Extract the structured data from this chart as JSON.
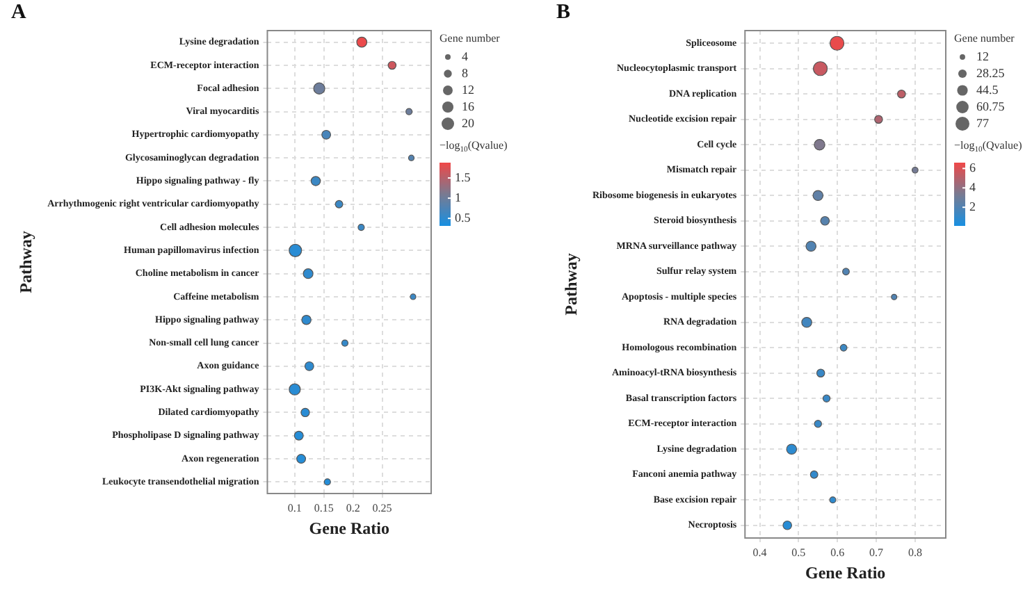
{
  "chart_data": [
    {
      "type": "bubble",
      "title": "A",
      "xlabel": "Gene Ratio",
      "ylabel": "Pathway",
      "orientation": "horizontal",
      "grid": true,
      "categories": [
        "Lysine degradation",
        "ECM-receptor interaction",
        "Focal adhesion",
        "Viral myocarditis",
        "Hypertrophic cardiomyopathy",
        "Glycosaminoglycan degradation",
        "Hippo signaling pathway - fly",
        "Arrhythmogenic right ventricular cardiomyopathy",
        "Cell adhesion molecules",
        "Human papillomavirus infection",
        "Choline metabolism in cancer",
        "Caffeine metabolism",
        "Hippo signaling pathway",
        "Non-small cell lung cancer",
        "Axon guidance",
        "PI3K-Akt signaling pathway",
        "Dilated cardiomyopathy",
        "Phospholipase D signaling pathway",
        "Axon regeneration",
        "Leukocyte transendothelial migration"
      ],
      "values": [
        0.215,
        0.267,
        0.142,
        0.296,
        0.154,
        0.3,
        0.136,
        0.176,
        0.214,
        0.101,
        0.123,
        0.303,
        0.12,
        0.186,
        0.125,
        0.1,
        0.118,
        0.107,
        0.111,
        0.156
      ],
      "sizes": [
        13,
        8,
        16,
        5,
        10,
        4,
        11,
        7,
        5,
        20,
        12,
        4,
        11,
        5,
        10,
        16,
        9,
        10,
        10,
        5
      ],
      "cvalues": [
        1.85,
        1.65,
        1.0,
        1.0,
        0.7,
        0.8,
        0.6,
        0.6,
        0.6,
        0.45,
        0.5,
        0.6,
        0.5,
        0.55,
        0.5,
        0.45,
        0.45,
        0.42,
        0.42,
        0.42
      ],
      "size_legend": [
        4,
        8,
        12,
        16,
        20
      ],
      "legend_title": "Gene number",
      "clabel": "−log$_{10}$(Qvalue)",
      "clim": [
        0.33,
        1.88
      ],
      "cticks": [
        0.5,
        1,
        1.5
      ],
      "xlim": [
        0.053,
        0.334
      ],
      "xticks": [
        0.1,
        0.15,
        0.2,
        0.25
      ]
    },
    {
      "type": "bubble",
      "title": "B",
      "xlabel": "Gene Ratio",
      "ylabel": "Pathway",
      "orientation": "horizontal",
      "grid": true,
      "categories": [
        "Spliceosome",
        "Nucleocytoplasmic transport",
        "DNA replication",
        "Nucleotide excision repair",
        "Cell cycle",
        "Mismatch repair",
        "Ribosome biogenesis in eukaryotes",
        "Steroid biosynthesis",
        "MRNA surveillance pathway",
        "Sulfur relay system",
        "Apoptosis - multiple species",
        "RNA degradation",
        "Homologous recombination",
        "Aminoacyl-tRNA biosynthesis",
        "Basal transcription factors",
        "ECM-receptor interaction",
        "Lysine degradation",
        "Fanconi anemia pathway",
        "Base excision repair",
        "Necroptosis"
      ],
      "values": [
        0.599,
        0.556,
        0.765,
        0.706,
        0.554,
        0.8,
        0.55,
        0.568,
        0.532,
        0.622,
        0.746,
        0.521,
        0.616,
        0.557,
        0.572,
        0.55,
        0.482,
        0.54,
        0.588,
        0.471
      ],
      "sizes": [
        77,
        77,
        25,
        25,
        45,
        14,
        40,
        30,
        40,
        18,
        12,
        40,
        18,
        25,
        20,
        20,
        40,
        22,
        15,
        30
      ],
      "cvalues": [
        6.4,
        5.5,
        5.2,
        4.8,
        3.5,
        3.2,
        2.5,
        2.2,
        2.0,
        2.0,
        2.0,
        1.5,
        1.3,
        1.2,
        1.2,
        1.2,
        0.8,
        1.0,
        0.9,
        0.6
      ],
      "size_legend": [
        12,
        28.25,
        44.5,
        60.75,
        77
      ],
      "legend_title": "Gene number",
      "clabel": "−log$_{10}$(Qvalue)",
      "clim": [
        0.15,
        6.6
      ],
      "cticks": [
        2,
        4,
        6
      ],
      "xlim": [
        0.362,
        0.879
      ],
      "xticks": [
        0.4,
        0.5,
        0.6,
        0.7,
        0.8
      ]
    }
  ]
}
